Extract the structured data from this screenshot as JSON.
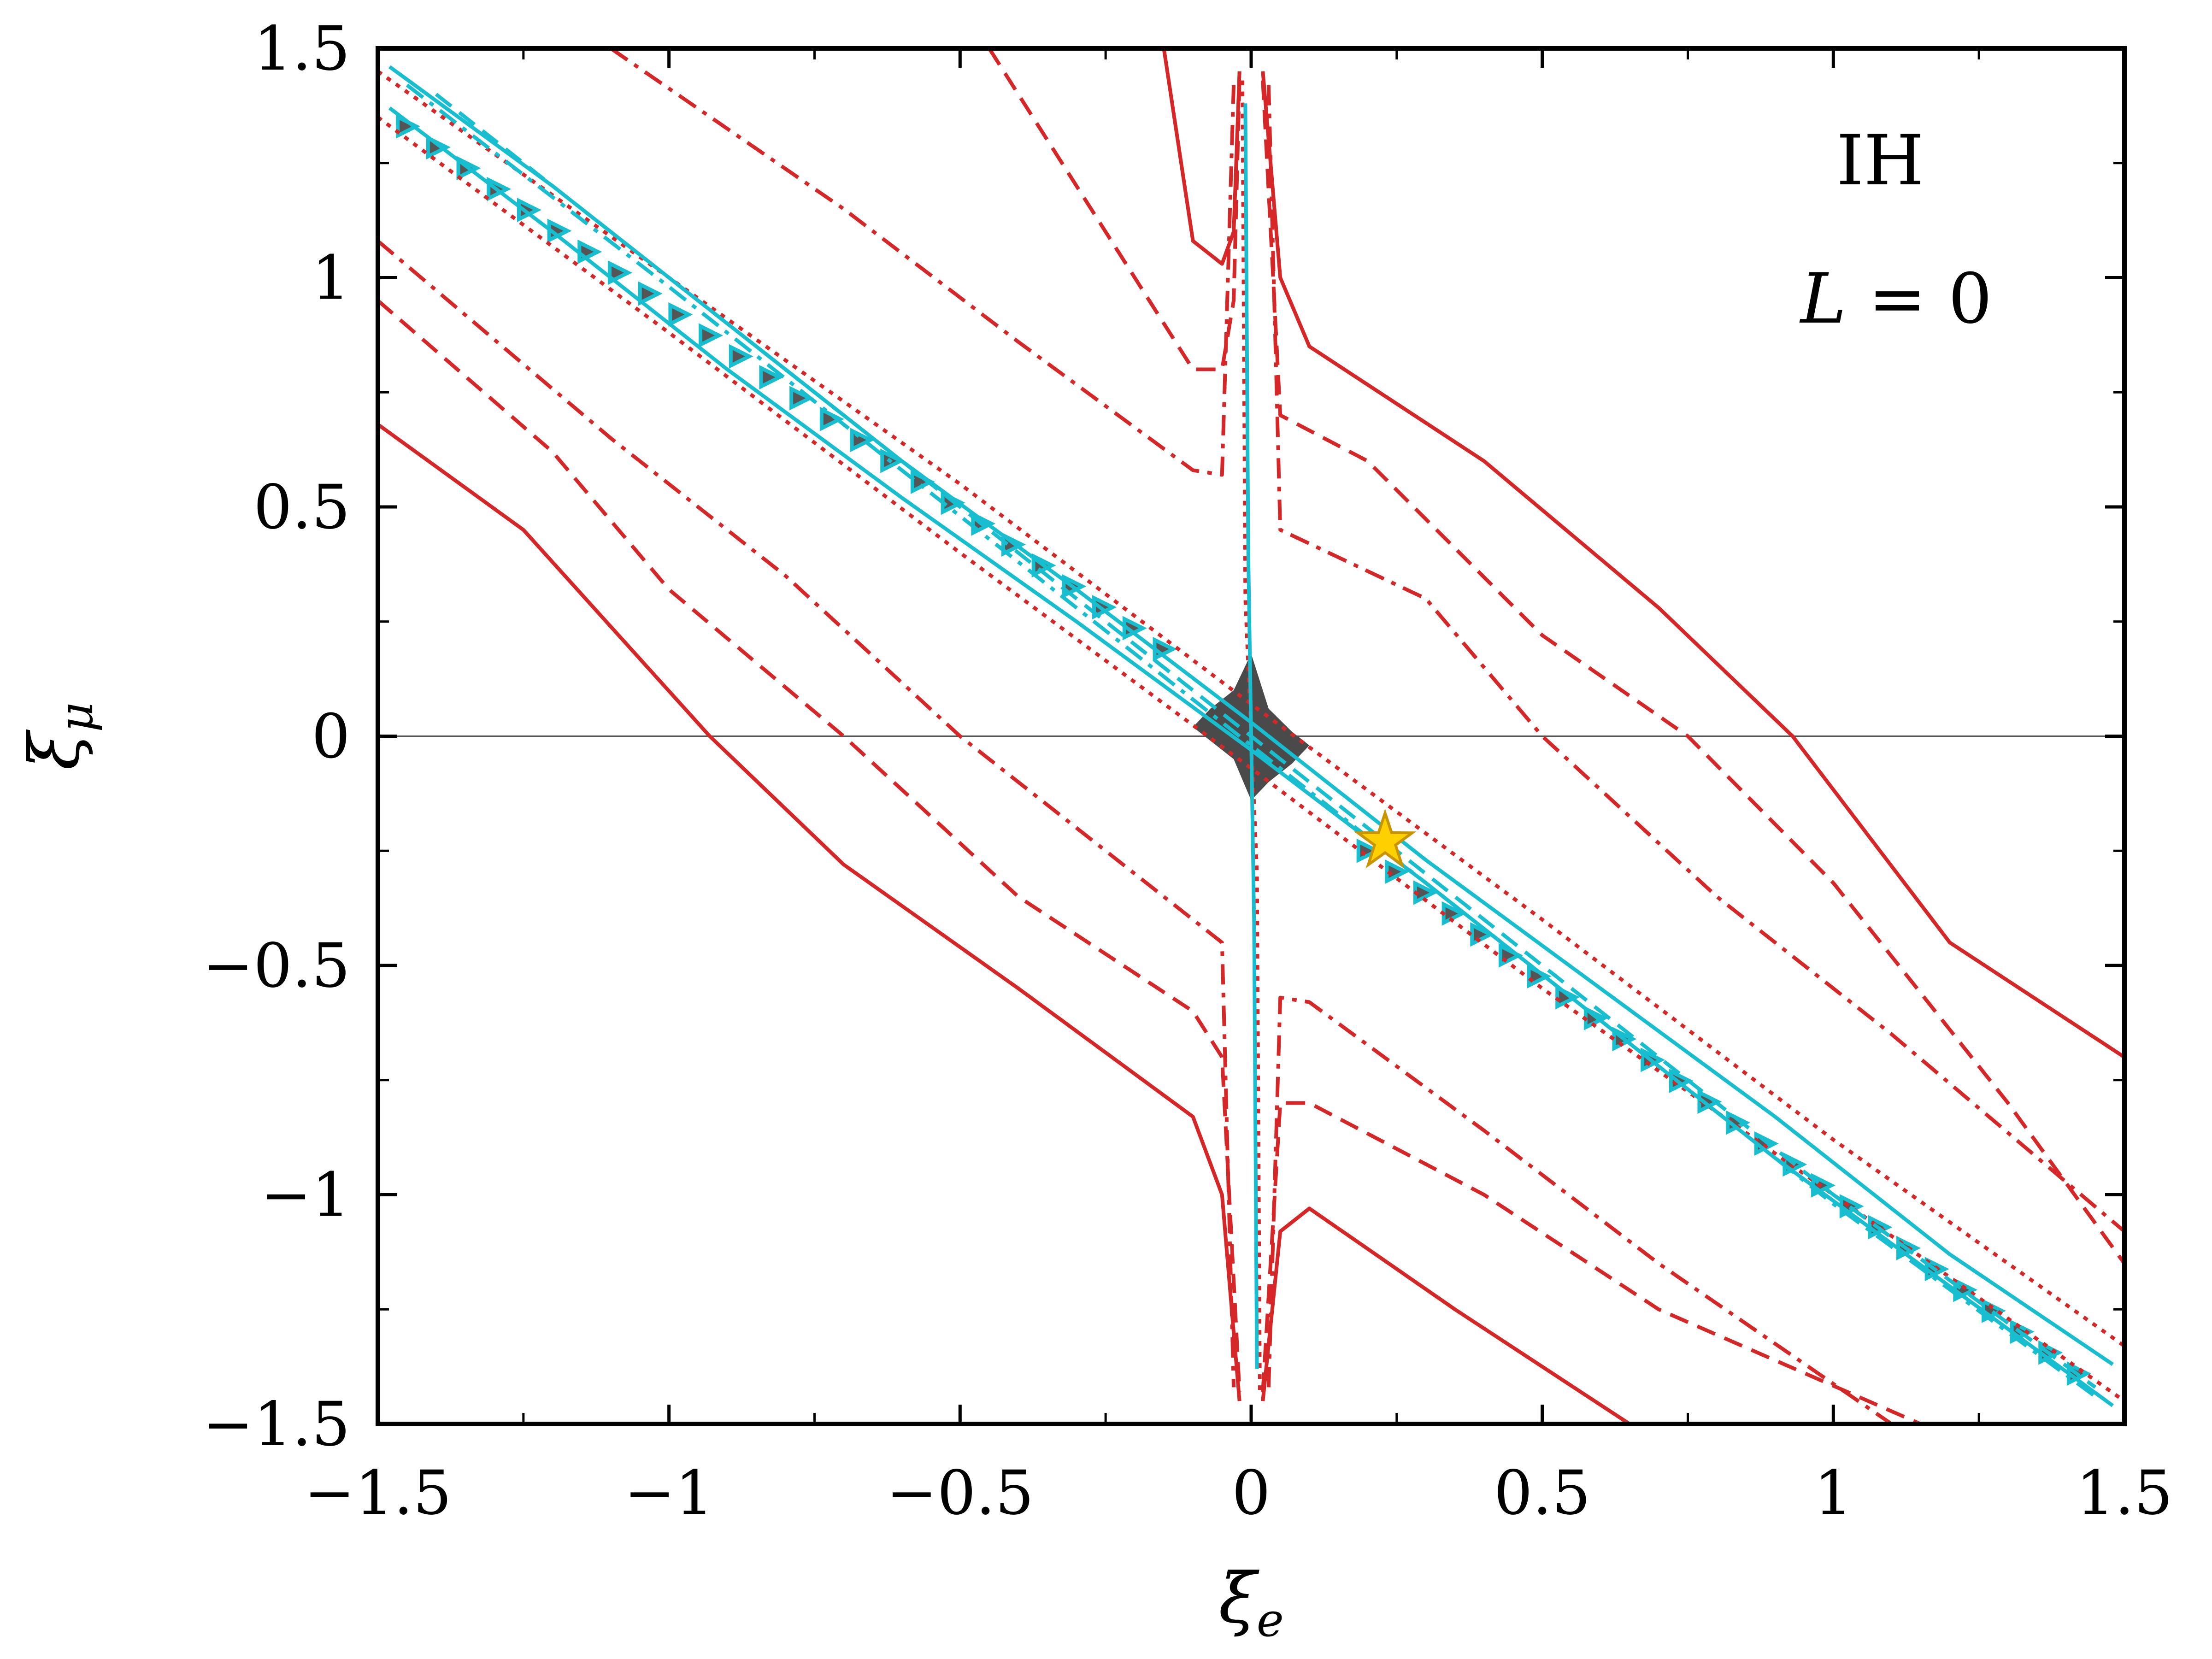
{
  "chart_data": {
    "type": "line",
    "title": "",
    "xlabel": "ξ",
    "xlabel_sub": "e",
    "ylabel": "ξ",
    "ylabel_sub": "μ",
    "xlim": [
      -1.5,
      1.5
    ],
    "ylim": [
      -1.5,
      1.5
    ],
    "xticks": [
      -1.5,
      -1,
      -0.5,
      0,
      0.5,
      1,
      1.5
    ],
    "yticks": [
      -1.5,
      -1,
      -0.5,
      0,
      0.5,
      1,
      1.5
    ],
    "xtick_labels": [
      "−1.5",
      "−1",
      "−0.5",
      "0",
      "0.5",
      "1",
      "1.5"
    ],
    "ytick_labels": [
      "−1.5",
      "−1",
      "−0.5",
      "0",
      "0.5",
      "1",
      "1.5"
    ],
    "minor_step": 0.25,
    "reference_line": {
      "y": 0
    },
    "annotation": {
      "hierarchy": "IH",
      "equation_lhs": "L",
      "equation_rhs": "= 0"
    },
    "colors": {
      "red": "#d62728",
      "cyan": "#17becf",
      "dark": "#4a4a4a",
      "star": "#ffd000",
      "star_edge": "#c89400"
    },
    "best_fit": {
      "x": 0.23,
      "y": -0.23
    },
    "series": [
      {
        "name": "red-solid-upper-left",
        "color": "red",
        "dash": "solid",
        "x": [
          -0.15,
          -0.1,
          -0.05,
          -0.03,
          -0.02
        ],
        "y": [
          1.5,
          1.08,
          1.03,
          1.1,
          1.45
        ]
      },
      {
        "name": "red-solid-upper-right",
        "color": "red",
        "dash": "solid",
        "x": [
          0.02,
          0.05,
          0.1,
          0.4,
          0.7,
          0.93,
          1.2,
          1.5
        ],
        "y": [
          1.45,
          1.0,
          0.85,
          0.6,
          0.28,
          0.0,
          -0.45,
          -0.7
        ]
      },
      {
        "name": "red-solid-lower-left",
        "color": "red",
        "dash": "solid",
        "x": [
          -1.5,
          -1.25,
          -0.93,
          -0.7,
          -0.4,
          -0.1,
          -0.05,
          -0.02
        ],
        "y": [
          0.68,
          0.45,
          0.0,
          -0.28,
          -0.55,
          -0.83,
          -1.0,
          -1.45
        ]
      },
      {
        "name": "red-solid-lower-right",
        "color": "red",
        "dash": "solid",
        "x": [
          0.02,
          0.05,
          0.1,
          0.35,
          0.65
        ],
        "y": [
          -1.45,
          -1.08,
          -1.03,
          -1.25,
          -1.5
        ]
      },
      {
        "name": "red-dashed-upper-left",
        "color": "red",
        "dash": "dashed",
        "x": [
          -0.45,
          -0.1,
          -0.05,
          -0.03,
          -0.02
        ],
        "y": [
          1.5,
          0.8,
          0.8,
          0.95,
          1.43
        ]
      },
      {
        "name": "red-dashed-upper-right",
        "color": "red",
        "dash": "dashed",
        "x": [
          0.02,
          0.05,
          0.2,
          0.5,
          0.75,
          1.0,
          1.3,
          1.5
        ],
        "y": [
          1.43,
          0.7,
          0.6,
          0.22,
          0.0,
          -0.32,
          -0.8,
          -1.15
        ]
      },
      {
        "name": "red-dashed-lower-left",
        "color": "red",
        "dash": "dashed",
        "x": [
          -1.5,
          -1.2,
          -1.0,
          -0.7,
          -0.4,
          -0.1,
          -0.05,
          -0.02
        ],
        "y": [
          0.95,
          0.62,
          0.32,
          0.0,
          -0.35,
          -0.6,
          -0.7,
          -1.43
        ]
      },
      {
        "name": "red-dashed-lower-right",
        "color": "red",
        "dash": "dashed",
        "x": [
          0.02,
          0.05,
          0.1,
          0.4,
          0.7,
          1.15
        ],
        "y": [
          -1.43,
          -0.8,
          -0.8,
          -1.0,
          -1.25,
          -1.5
        ]
      },
      {
        "name": "red-dashdot-upper-left",
        "color": "red",
        "dash": "dashdot",
        "x": [
          -1.1,
          -0.7,
          -0.4,
          -0.1,
          -0.05,
          -0.03
        ],
        "y": [
          1.5,
          1.15,
          0.86,
          0.58,
          0.57,
          1.42
        ]
      },
      {
        "name": "red-dashdot-upper-right",
        "color": "red",
        "dash": "dashdot",
        "x": [
          0.03,
          0.05,
          0.3,
          0.5,
          0.8,
          1.1,
          1.5
        ],
        "y": [
          1.42,
          0.45,
          0.3,
          0.0,
          -0.35,
          -0.65,
          -1.08
        ]
      },
      {
        "name": "red-dashdot-lower-left",
        "color": "red",
        "dash": "dashdot",
        "x": [
          -1.5,
          -1.1,
          -0.8,
          -0.5,
          -0.2,
          -0.05,
          -0.03
        ],
        "y": [
          1.08,
          0.65,
          0.35,
          0.0,
          -0.3,
          -0.45,
          -1.42
        ]
      },
      {
        "name": "red-dashdot-lower-right",
        "color": "red",
        "dash": "dashdot",
        "x": [
          0.03,
          0.05,
          0.1,
          0.4,
          0.7,
          1.1
        ],
        "y": [
          -1.42,
          -0.57,
          -0.58,
          -0.86,
          -1.15,
          -1.5
        ]
      },
      {
        "name": "red-dotted-band-upper",
        "color": "red",
        "dash": "dotted",
        "x": [
          -1.5,
          -1.0,
          -0.5,
          0.0,
          0.5,
          1.0,
          1.5
        ],
        "y": [
          1.45,
          1.0,
          0.55,
          0.07,
          -0.4,
          -0.88,
          -1.33
        ]
      },
      {
        "name": "red-dotted-band-lower",
        "color": "red",
        "dash": "dotted",
        "x": [
          -1.5,
          -1.0,
          -0.5,
          0.0,
          0.5,
          1.0,
          1.5
        ],
        "y": [
          1.35,
          0.88,
          0.4,
          -0.07,
          -0.55,
          -1.0,
          -1.45
        ]
      },
      {
        "name": "red-dotted-spike",
        "color": "red",
        "dash": "dotted",
        "x": [
          -0.015,
          -0.01,
          0.0,
          0.01,
          0.015
        ],
        "y": [
          1.43,
          0.3,
          0.0,
          -0.3,
          -1.43
        ]
      },
      {
        "name": "cyan-solid-band-upper",
        "color": "cyan",
        "dash": "solid",
        "x": [
          -1.48,
          -1.2,
          -0.9,
          -0.6,
          -0.3,
          0.0,
          0.3,
          0.6,
          0.9,
          1.2,
          1.48
        ],
        "y": [
          1.46,
          1.2,
          0.9,
          0.6,
          0.32,
          0.03,
          -0.27,
          -0.55,
          -0.83,
          -1.13,
          -1.37
        ]
      },
      {
        "name": "cyan-solid-band-lower",
        "color": "cyan",
        "dash": "solid",
        "x": [
          -1.48,
          -1.2,
          -0.9,
          -0.6,
          -0.3,
          0.0,
          0.3,
          0.6,
          0.9,
          1.2,
          1.48
        ],
        "y": [
          1.37,
          1.1,
          0.8,
          0.52,
          0.25,
          -0.03,
          -0.32,
          -0.62,
          -0.92,
          -1.2,
          -1.46
        ]
      },
      {
        "name": "cyan-solid-spike",
        "color": "cyan",
        "dash": "solid",
        "x": [
          -0.01,
          -0.005,
          0.0,
          0.005,
          0.01
        ],
        "y": [
          1.38,
          0.4,
          0.0,
          -0.4,
          -1.38
        ]
      },
      {
        "name": "cyan-dashed-band",
        "color": "cyan",
        "dash": "dashed",
        "x": [
          -1.4,
          -1.0,
          -0.5,
          0.0,
          0.5,
          1.0,
          1.45
        ],
        "y": [
          1.4,
          1.0,
          0.5,
          0.0,
          -0.5,
          -1.0,
          -1.42
        ]
      },
      {
        "name": "cyan-dashdot-band",
        "color": "cyan",
        "dash": "dashdot",
        "x": [
          -1.45,
          -1.0,
          -0.5,
          0.0,
          0.5,
          1.0,
          1.45
        ],
        "y": [
          1.42,
          0.98,
          0.48,
          -0.02,
          -0.52,
          -1.02,
          -1.44
        ]
      }
    ],
    "regions": [
      {
        "name": "best-fit-region",
        "color": "dark",
        "x": [
          0.0,
          0.03,
          0.07,
          0.1,
          0.07,
          0.03,
          0.0,
          -0.03,
          -0.07,
          -0.1,
          -0.07,
          -0.03
        ],
        "y": [
          0.18,
          0.06,
          0.01,
          -0.02,
          -0.06,
          -0.1,
          -0.14,
          -0.05,
          -0.01,
          0.02,
          0.06,
          0.1
        ]
      }
    ],
    "marker_rows": [
      {
        "name": "upper-triangle-row",
        "color": "cyan",
        "x0": -1.45,
        "y0": 1.33,
        "x1": -0.15,
        "y1": 0.19,
        "count": 26
      },
      {
        "name": "lower-triangle-row",
        "color": "cyan",
        "x0": 0.2,
        "y0": -0.25,
        "x1": 1.42,
        "y1": -1.39,
        "count": 26
      }
    ]
  }
}
